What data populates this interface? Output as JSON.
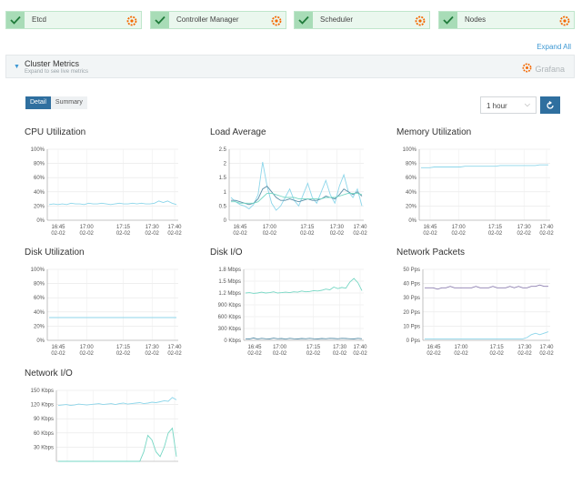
{
  "status_cards": [
    {
      "label": "Etcd",
      "icon": "grafana-icon"
    },
    {
      "label": "Controller Manager",
      "icon": "grafana-icon"
    },
    {
      "label": "Scheduler",
      "icon": "grafana-icon"
    },
    {
      "label": "Nodes",
      "icon": "grafana-icon"
    }
  ],
  "expand_all": "Expand All",
  "metrics": {
    "title": "Cluster Metrics",
    "subtitle": "Expand to see live metrics",
    "grafana_label": "Grafana"
  },
  "tabs": {
    "detail": "Detail",
    "summary": "Summary"
  },
  "range": {
    "value": "1 hour"
  },
  "colors": {
    "series_light": "#8dd6ea",
    "series_teal": "#76d7c4",
    "series_dark": "#5a8fa8",
    "series_purple": "#8d7fb0",
    "accent": "#2f6f9f",
    "status_bg": "#eaf7ee"
  },
  "x_ticks": [
    [
      "16:45",
      "02-02"
    ],
    [
      "17:00",
      "02-02"
    ],
    [
      "17:15",
      "02-02"
    ],
    [
      "17:30",
      "02-02"
    ],
    [
      "17:40",
      "02-02"
    ]
  ],
  "panels": {
    "cpu": {
      "title": "CPU Utilization"
    },
    "load": {
      "title": "Load Average"
    },
    "memory": {
      "title": "Memory Utilization"
    },
    "disk_util": {
      "title": "Disk Utilization"
    },
    "disk_io": {
      "title": "Disk I/O"
    },
    "net_packets": {
      "title": "Network Packets"
    },
    "net_io": {
      "title": "Network I/O"
    }
  },
  "chart_data": [
    {
      "id": "cpu",
      "type": "line",
      "title": "CPU Utilization",
      "y_ticks": [
        "0%",
        "20%",
        "40%",
        "60%",
        "80%",
        "100%"
      ],
      "ylim": [
        0,
        100
      ],
      "series": [
        {
          "values": [
            22,
            23,
            22,
            23,
            22,
            24,
            23,
            23,
            22,
            24,
            23,
            23,
            24,
            23,
            22,
            23,
            24,
            23,
            23,
            24,
            23,
            24,
            23,
            23,
            24,
            27,
            25,
            27,
            24,
            22
          ]
        }
      ]
    },
    {
      "id": "load",
      "type": "line",
      "title": "Load Average",
      "y_ticks": [
        "0",
        "0.5",
        "1",
        "1.5",
        "2",
        "2.5"
      ],
      "ylim": [
        0,
        2.5
      ],
      "series": [
        {
          "values": [
            0.8,
            0.65,
            0.55,
            0.5,
            0.4,
            0.55,
            0.9,
            2.05,
            1.2,
            0.6,
            0.35,
            0.5,
            0.8,
            1.1,
            0.7,
            0.5,
            0.9,
            1.3,
            0.8,
            0.6,
            1.0,
            1.4,
            0.9,
            0.6,
            1.2,
            1.6,
            1.0,
            0.8,
            1.1,
            0.5
          ]
        },
        {
          "values": [
            0.7,
            0.7,
            0.65,
            0.6,
            0.55,
            0.6,
            0.75,
            1.1,
            1.2,
            1.0,
            0.8,
            0.7,
            0.7,
            0.75,
            0.7,
            0.65,
            0.7,
            0.75,
            0.7,
            0.7,
            0.75,
            0.85,
            0.8,
            0.75,
            0.9,
            1.1,
            1.0,
            0.9,
            1.0,
            0.85
          ]
        },
        {
          "values": [
            0.65,
            0.65,
            0.6,
            0.6,
            0.6,
            0.6,
            0.65,
            0.8,
            0.95,
            0.95,
            0.9,
            0.85,
            0.8,
            0.8,
            0.8,
            0.75,
            0.75,
            0.75,
            0.75,
            0.75,
            0.75,
            0.8,
            0.8,
            0.8,
            0.85,
            0.9,
            0.95,
            0.95,
            0.95,
            0.9
          ]
        }
      ]
    },
    {
      "id": "memory",
      "type": "line",
      "title": "Memory Utilization",
      "y_ticks": [
        "0%",
        "20%",
        "40%",
        "60%",
        "80%",
        "100%"
      ],
      "ylim": [
        0,
        100
      ],
      "series": [
        {
          "values": [
            74,
            74,
            74,
            75,
            75,
            75,
            75,
            75,
            75,
            75,
            76,
            76,
            76,
            76,
            76,
            76,
            76,
            76,
            77,
            77,
            77,
            77,
            77,
            77,
            77,
            77,
            77,
            78,
            78,
            78
          ]
        }
      ]
    },
    {
      "id": "disk_util",
      "type": "line",
      "title": "Disk Utilization",
      "y_ticks": [
        "0%",
        "20%",
        "40%",
        "60%",
        "80%",
        "100%"
      ],
      "ylim": [
        0,
        100
      ],
      "series": [
        {
          "values": [
            32,
            32,
            32,
            32,
            32,
            32,
            32,
            32,
            32,
            32,
            32,
            32,
            32,
            32,
            32,
            32,
            32,
            32,
            32,
            32,
            32,
            32,
            32,
            32,
            32,
            32,
            32,
            32,
            32,
            32
          ]
        }
      ]
    },
    {
      "id": "disk_io",
      "type": "line",
      "title": "Disk I/O",
      "y_ticks": [
        "0 Kbps",
        "300 Kbps",
        "600 Kbps",
        "900 Kbps",
        "1.2 Mbps",
        "1.5 Mbps",
        "1.8 Mbps"
      ],
      "ylim": [
        0,
        1800
      ],
      "series": [
        {
          "values": [
            1200,
            1210,
            1190,
            1200,
            1220,
            1200,
            1210,
            1230,
            1200,
            1210,
            1220,
            1210,
            1230,
            1220,
            1250,
            1230,
            1240,
            1260,
            1250,
            1270,
            1300,
            1280,
            1350,
            1310,
            1340,
            1320,
            1480,
            1570,
            1460,
            1260
          ]
        },
        {
          "values": [
            40,
            35,
            60,
            30,
            50,
            40,
            35,
            55,
            40,
            45,
            30,
            50,
            40,
            35,
            45,
            40,
            50,
            40,
            35,
            45,
            40,
            50,
            45,
            40,
            50,
            45,
            40,
            35,
            50,
            40
          ]
        }
      ]
    },
    {
      "id": "net_packets",
      "type": "line",
      "title": "Network Packets",
      "y_ticks": [
        "0 Pps",
        "10 Pps",
        "20 Pps",
        "30 Pps",
        "40 Pps",
        "50 Pps"
      ],
      "ylim": [
        0,
        50
      ],
      "series": [
        {
          "values": [
            37,
            37,
            37,
            36,
            37,
            37,
            38,
            37,
            37,
            37,
            37,
            37,
            38,
            37,
            37,
            37,
            38,
            37,
            37,
            37,
            38,
            37,
            38,
            37,
            37,
            38,
            38,
            39,
            38,
            38
          ]
        },
        {
          "values": [
            1,
            1,
            1,
            1,
            1,
            1,
            1,
            1,
            1,
            1,
            1,
            1,
            1,
            1,
            1,
            1,
            1,
            1,
            1,
            1,
            1,
            1,
            1,
            1,
            2,
            4,
            5,
            4,
            5,
            6
          ]
        }
      ]
    },
    {
      "id": "net_io",
      "type": "line",
      "title": "Network I/O",
      "y_ticks": [
        "30 Kbps",
        "60 Kbps",
        "90 Kbps",
        "120 Kbps",
        "150 Kbps"
      ],
      "ylim": [
        0,
        150
      ],
      "series": [
        {
          "values": [
            118,
            119,
            120,
            118,
            119,
            121,
            120,
            119,
            120,
            121,
            122,
            120,
            121,
            122,
            120,
            122,
            123,
            121,
            122,
            123,
            124,
            122,
            123,
            125,
            124,
            126,
            128,
            127,
            135,
            130
          ]
        },
        {
          "values": [
            0,
            0,
            0,
            0,
            0,
            0,
            0,
            0,
            0,
            0,
            0,
            0,
            0,
            0,
            0,
            0,
            0,
            0,
            0,
            0,
            0,
            20,
            55,
            45,
            20,
            10,
            30,
            60,
            70,
            10
          ]
        }
      ]
    }
  ]
}
